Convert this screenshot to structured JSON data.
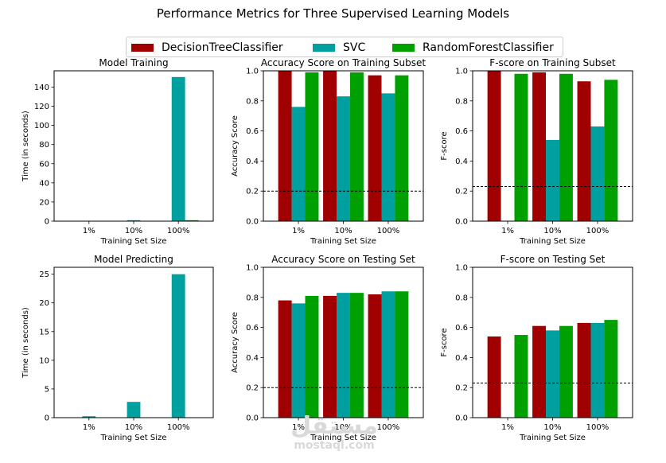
{
  "figure_title": "Performance Metrics for Three Supervised Learning Models",
  "colors": {
    "dt": "#a00000",
    "svc": "#00a0a0",
    "rf": "#00a000"
  },
  "legend": {
    "items": [
      {
        "label": "DecisionTreeClassifier",
        "color": "#a00000"
      },
      {
        "label": "SVC",
        "color": "#00a0a0"
      },
      {
        "label": "RandomForestClassifier",
        "color": "#00a000"
      }
    ]
  },
  "watermark": {
    "arabic": "مستقل",
    "latin": "mostaql.com"
  },
  "chart_data": [
    {
      "type": "bar",
      "title": "Model Training",
      "xlabel": "Training Set Size",
      "ylabel": "Time (in seconds)",
      "categories": [
        "1%",
        "10%",
        "100%"
      ],
      "ylim": [
        0,
        157
      ],
      "yticks": [
        0,
        20,
        40,
        60,
        80,
        100,
        120,
        140
      ],
      "ytick_labels": [
        "0",
        "20",
        "40",
        "60",
        "80",
        "100",
        "120",
        "140"
      ],
      "series": [
        {
          "name": "DecisionTreeClassifier",
          "values": [
            0.01,
            0.05,
            0.4
          ]
        },
        {
          "name": "SVC",
          "values": [
            0.05,
            1.0,
            150.5
          ]
        },
        {
          "name": "RandomForestClassifier",
          "values": [
            0.05,
            0.1,
            1.0
          ]
        }
      ],
      "baseline": null
    },
    {
      "type": "bar",
      "title": "Accuracy Score on Training Subset",
      "xlabel": "Training Set Size",
      "ylabel": "Accuracy Score",
      "categories": [
        "1%",
        "10%",
        "100%"
      ],
      "ylim": [
        0,
        1
      ],
      "yticks": [
        0,
        0.2,
        0.4,
        0.6,
        0.8,
        1.0
      ],
      "ytick_labels": [
        "0.0",
        "0.2",
        "0.4",
        "0.6",
        "0.8",
        "1.0"
      ],
      "series": [
        {
          "name": "DecisionTreeClassifier",
          "values": [
            1.0,
            1.0,
            0.97
          ]
        },
        {
          "name": "SVC",
          "values": [
            0.76,
            0.83,
            0.85
          ]
        },
        {
          "name": "RandomForestClassifier",
          "values": [
            0.99,
            0.99,
            0.97
          ]
        }
      ],
      "baseline": 0.2
    },
    {
      "type": "bar",
      "title": "F-score on Training Subset",
      "xlabel": "Training Set Size",
      "ylabel": "F-score",
      "categories": [
        "1%",
        "10%",
        "100%"
      ],
      "ylim": [
        0,
        1
      ],
      "yticks": [
        0,
        0.2,
        0.4,
        0.6,
        0.8,
        1.0
      ],
      "ytick_labels": [
        "0.0",
        "0.2",
        "0.4",
        "0.6",
        "0.8",
        "1.0"
      ],
      "series": [
        {
          "name": "DecisionTreeClassifier",
          "values": [
            1.0,
            0.99,
            0.93
          ]
        },
        {
          "name": "SVC",
          "values": [
            0.0,
            0.54,
            0.63
          ]
        },
        {
          "name": "RandomForestClassifier",
          "values": [
            0.98,
            0.98,
            0.94
          ]
        }
      ],
      "baseline": 0.23
    },
    {
      "type": "bar",
      "title": "Model Predicting",
      "xlabel": "Training Set Size",
      "ylabel": "Time (in seconds)",
      "categories": [
        "1%",
        "10%",
        "100%"
      ],
      "ylim": [
        0,
        26.2
      ],
      "yticks": [
        0,
        5,
        10,
        15,
        20,
        25
      ],
      "ytick_labels": [
        "0",
        "5",
        "10",
        "15",
        "20",
        "25"
      ],
      "series": [
        {
          "name": "DecisionTreeClassifier",
          "values": [
            0.01,
            0.01,
            0.02
          ]
        },
        {
          "name": "SVC",
          "values": [
            0.25,
            2.75,
            25.0
          ]
        },
        {
          "name": "RandomForestClassifier",
          "values": [
            0.02,
            0.02,
            0.05
          ]
        }
      ],
      "baseline": null
    },
    {
      "type": "bar",
      "title": "Accuracy Score on Testing Set",
      "xlabel": "Training Set Size",
      "ylabel": "Accuracy Score",
      "categories": [
        "1%",
        "10%",
        "100%"
      ],
      "ylim": [
        0,
        1
      ],
      "yticks": [
        0,
        0.2,
        0.4,
        0.6,
        0.8,
        1.0
      ],
      "ytick_labels": [
        "0.0",
        "0.2",
        "0.4",
        "0.6",
        "0.8",
        "1.0"
      ],
      "series": [
        {
          "name": "DecisionTreeClassifier",
          "values": [
            0.78,
            0.81,
            0.82
          ]
        },
        {
          "name": "SVC",
          "values": [
            0.76,
            0.83,
            0.84
          ]
        },
        {
          "name": "RandomForestClassifier",
          "values": [
            0.81,
            0.83,
            0.84
          ]
        }
      ],
      "baseline": 0.2
    },
    {
      "type": "bar",
      "title": "F-score on Testing Set",
      "xlabel": "Training Set Size",
      "ylabel": "F-score",
      "categories": [
        "1%",
        "10%",
        "100%"
      ],
      "ylim": [
        0,
        1
      ],
      "yticks": [
        0,
        0.2,
        0.4,
        0.6,
        0.8,
        1.0
      ],
      "ytick_labels": [
        "0.0",
        "0.2",
        "0.4",
        "0.6",
        "0.8",
        "1.0"
      ],
      "series": [
        {
          "name": "DecisionTreeClassifier",
          "values": [
            0.54,
            0.61,
            0.63
          ]
        },
        {
          "name": "SVC",
          "values": [
            0.0,
            0.58,
            0.63
          ]
        },
        {
          "name": "RandomForestClassifier",
          "values": [
            0.55,
            0.61,
            0.65
          ]
        }
      ],
      "baseline": 0.23
    }
  ]
}
